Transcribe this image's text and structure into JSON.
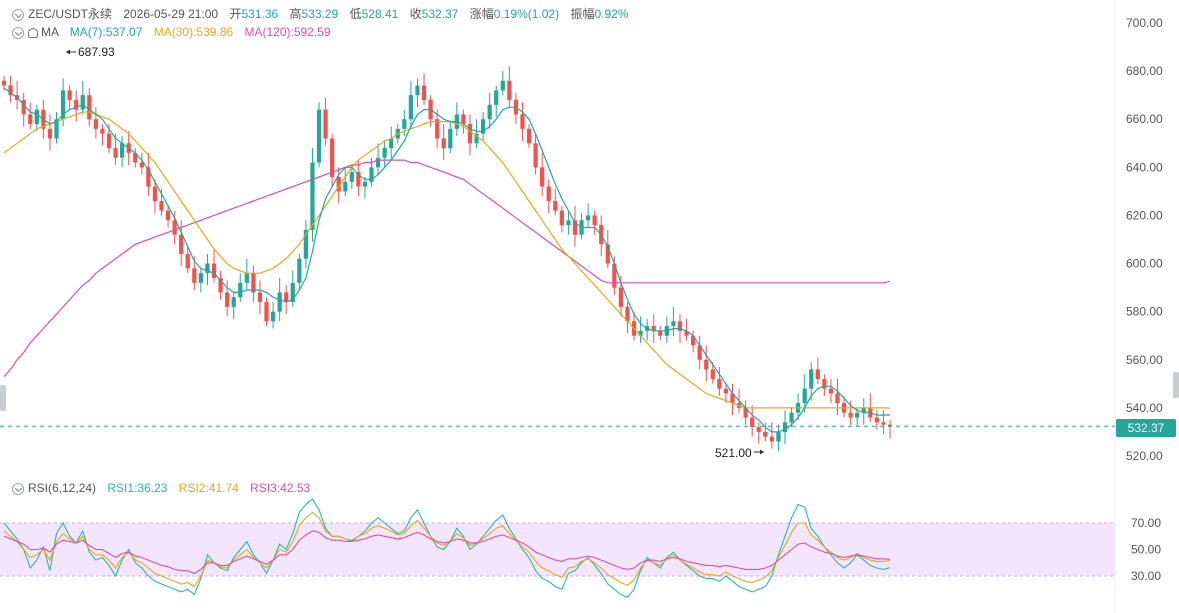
{
  "header": {
    "symbol": "ZEC/USDT永续",
    "datetime": "2026-05-29 21:00",
    "open_label": "开",
    "open_value": "531.36",
    "high_label": "高",
    "high_value": "533.29",
    "low_label": "低",
    "low_value": "528.41",
    "close_label": "收",
    "close_value": "532.37",
    "change_label": "涨幅",
    "change_value": "0.19%(1.02)",
    "amplitude_label": "振幅",
    "amplitude_value": "0.92%"
  },
  "ma_legend": {
    "label": "MA",
    "ma7": "MA(7):537.07",
    "ma30": "MA(30):539.86",
    "ma120": "MA(120):592.59"
  },
  "rsi_legend": {
    "label": "RSI(6,12,24)",
    "rsi1": "RSI1:36.23",
    "rsi2": "RSI2:41.74",
    "rsi3": "RSI3:42.53"
  },
  "price_axis": {
    "ticks": [
      "700.00",
      "680.00",
      "660.00",
      "640.00",
      "620.00",
      "600.00",
      "580.00",
      "560.00",
      "540.00",
      "520.00"
    ],
    "current_price": "532.37"
  },
  "rsi_axis": {
    "ticks": [
      "70.00",
      "50.00",
      "30.00"
    ]
  },
  "annotations": {
    "high": "687.93",
    "low": "521.00"
  },
  "colors": {
    "up": "#26a69a",
    "down": "#ef5350",
    "ma7": "#26a69a",
    "ma30": "#e6a817",
    "ma120": "#d64fb0",
    "rsi_band": "#f3e5fb"
  },
  "chart_data": [
    {
      "type": "candlestick",
      "title": "ZEC/USDT永续",
      "ylim": [
        515,
        705
      ],
      "yticks": [
        700,
        680,
        660,
        640,
        620,
        600,
        580,
        560,
        540,
        520
      ],
      "close": [
        674,
        670,
        668,
        662,
        658,
        664,
        656,
        652,
        660,
        672,
        668,
        664,
        670,
        660,
        656,
        654,
        648,
        644,
        650,
        646,
        642,
        640,
        632,
        626,
        622,
        618,
        612,
        604,
        598,
        592,
        596,
        600,
        594,
        588,
        582,
        586,
        592,
        596,
        588,
        584,
        576,
        580,
        588,
        584,
        592,
        602,
        614,
        642,
        664,
        652,
        636,
        630,
        634,
        638,
        632,
        634,
        640,
        644,
        648,
        652,
        656,
        660,
        670,
        674,
        668,
        660,
        652,
        648,
        656,
        662,
        658,
        650,
        654,
        660,
        666,
        672,
        676,
        668,
        662,
        656,
        650,
        640,
        632,
        626,
        622,
        616,
        618,
        612,
        618,
        620,
        616,
        608,
        600,
        590,
        582,
        576,
        570,
        572,
        574,
        572,
        570,
        574,
        576,
        572,
        570,
        566,
        560,
        556,
        552,
        548,
        546,
        542,
        540,
        536,
        532,
        530,
        528,
        526,
        530,
        534,
        538,
        542,
        548,
        556,
        552,
        548,
        546,
        542,
        538,
        536,
        538,
        540,
        536,
        534,
        533,
        532.37
      ],
      "ma7": [
        673,
        671,
        669,
        666,
        663,
        662,
        660,
        658,
        659,
        662,
        664,
        665,
        666,
        664,
        662,
        660,
        656,
        652,
        650,
        648,
        646,
        643,
        639,
        634,
        629,
        624,
        619,
        613,
        607,
        601,
        598,
        597,
        596,
        593,
        590,
        588,
        588,
        589,
        589,
        589,
        588,
        586,
        585,
        584,
        585,
        589,
        594,
        605,
        618,
        627,
        632,
        637,
        640,
        640,
        637,
        635,
        635,
        637,
        640,
        643,
        647,
        651,
        657,
        662,
        664,
        664,
        662,
        660,
        659,
        659,
        658,
        656,
        655,
        655,
        657,
        660,
        664,
        665,
        665,
        663,
        660,
        654,
        647,
        640,
        633,
        627,
        622,
        617,
        615,
        615,
        615,
        612,
        607,
        600,
        592,
        585,
        579,
        575,
        573,
        572,
        572,
        572,
        573,
        573,
        572,
        570,
        566,
        562,
        558,
        554,
        550,
        546,
        543,
        540,
        537,
        535,
        532,
        530,
        530,
        531,
        533,
        536,
        540,
        545,
        548,
        549,
        549,
        547,
        544,
        541,
        539,
        538,
        538,
        537,
        537,
        537.07
      ],
      "ma30": [
        646,
        648,
        650,
        652,
        654,
        656,
        657,
        658,
        659,
        660,
        661,
        662,
        663,
        663,
        662,
        661,
        660,
        658,
        656,
        654,
        651,
        648,
        645,
        642,
        638,
        634,
        630,
        626,
        622,
        618,
        614,
        610,
        606,
        603,
        600,
        598,
        597,
        596,
        596,
        596,
        597,
        598,
        600,
        602,
        605,
        608,
        612,
        616,
        620,
        624,
        628,
        632,
        636,
        640,
        643,
        645,
        647,
        649,
        651,
        652,
        654,
        655,
        656,
        657,
        658,
        659,
        659,
        659,
        659,
        658,
        657,
        655,
        653,
        651,
        648,
        645,
        642,
        638,
        634,
        630,
        626,
        622,
        618,
        614,
        610,
        606,
        603,
        600,
        597,
        594,
        591,
        588,
        585,
        582,
        579,
        576,
        573,
        570,
        567,
        564,
        561,
        558,
        556,
        554,
        552,
        550,
        548,
        546,
        545,
        544,
        543,
        542,
        541,
        540,
        540,
        540,
        540,
        540,
        540,
        540,
        540,
        540,
        540,
        540,
        540,
        540,
        540,
        540,
        540,
        540,
        540,
        540,
        540,
        540,
        540,
        539.86
      ],
      "ma120": [
        553,
        556,
        560,
        563,
        567,
        570,
        573,
        576,
        579,
        582,
        585,
        588,
        591,
        593,
        596,
        598,
        600,
        602,
        604,
        606,
        608,
        609,
        610,
        611,
        612,
        613,
        614,
        615,
        616,
        617,
        618,
        619,
        620,
        621,
        622,
        623,
        624,
        625,
        626,
        627,
        628,
        629,
        630,
        631,
        632,
        633,
        634,
        635,
        636,
        637,
        638,
        639,
        640,
        641,
        641,
        642,
        642,
        643,
        643,
        643,
        643,
        643,
        642,
        642,
        641,
        640,
        639,
        638,
        637,
        636,
        635,
        633,
        631,
        629,
        627,
        625,
        623,
        621,
        619,
        617,
        615,
        613,
        611,
        609,
        607,
        605,
        603,
        601,
        599,
        597,
        595,
        593,
        592,
        592,
        592,
        592,
        592,
        592,
        592,
        592,
        592,
        592,
        592,
        592,
        592,
        592,
        592,
        592,
        592,
        592,
        592,
        592,
        592,
        592,
        592,
        592,
        592,
        592,
        592,
        592,
        592,
        592,
        592,
        592,
        592,
        592,
        592,
        592,
        592,
        592,
        592,
        592,
        592,
        592,
        592,
        592.59
      ]
    },
    {
      "type": "line",
      "title": "RSI(6,12,24)",
      "ylim": [
        10,
        90
      ],
      "yticks": [
        70,
        50,
        30
      ],
      "band": [
        30,
        70
      ],
      "series": [
        {
          "name": "RSI1",
          "values": [
            70,
            64,
            58,
            50,
            36,
            42,
            52,
            34,
            62,
            70,
            60,
            55,
            64,
            48,
            42,
            44,
            38,
            30,
            42,
            50,
            40,
            36,
            30,
            26,
            24,
            22,
            20,
            18,
            20,
            16,
            28,
            46,
            40,
            36,
            34,
            44,
            50,
            56,
            46,
            40,
            32,
            42,
            54,
            50,
            62,
            78,
            84,
            88,
            80,
            66,
            60,
            60,
            58,
            56,
            60,
            64,
            70,
            74,
            70,
            66,
            62,
            64,
            74,
            80,
            70,
            60,
            52,
            50,
            56,
            66,
            60,
            50,
            54,
            60,
            66,
            72,
            76,
            66,
            58,
            50,
            44,
            34,
            28,
            26,
            22,
            20,
            32,
            34,
            40,
            44,
            38,
            32,
            24,
            20,
            16,
            14,
            20,
            34,
            44,
            40,
            36,
            44,
            48,
            42,
            38,
            34,
            30,
            28,
            28,
            26,
            30,
            26,
            22,
            20,
            18,
            20,
            22,
            30,
            46,
            60,
            74,
            84,
            82,
            66,
            60,
            52,
            46,
            40,
            36,
            40,
            46,
            42,
            38,
            36,
            35,
            36.23
          ]
        },
        {
          "name": "RSI2",
          "values": [
            64,
            60,
            56,
            50,
            44,
            46,
            50,
            42,
            56,
            62,
            58,
            55,
            60,
            50,
            46,
            46,
            42,
            36,
            44,
            48,
            42,
            40,
            36,
            32,
            30,
            28,
            26,
            24,
            25,
            22,
            30,
            42,
            40,
            37,
            36,
            42,
            46,
            50,
            44,
            40,
            36,
            42,
            50,
            48,
            56,
            68,
            74,
            78,
            74,
            64,
            60,
            60,
            58,
            57,
            60,
            62,
            66,
            68,
            66,
            64,
            61,
            62,
            68,
            72,
            66,
            60,
            55,
            53,
            56,
            62,
            59,
            53,
            55,
            58,
            62,
            66,
            68,
            62,
            57,
            52,
            48,
            41,
            36,
            34,
            31,
            29,
            36,
            37,
            41,
            43,
            40,
            36,
            31,
            28,
            25,
            23,
            27,
            36,
            42,
            40,
            38,
            43,
            46,
            42,
            39,
            36,
            33,
            31,
            31,
            30,
            33,
            30,
            28,
            26,
            25,
            27,
            29,
            34,
            44,
            53,
            63,
            70,
            70,
            61,
            57,
            52,
            48,
            44,
            42,
            44,
            47,
            44,
            42,
            41,
            41,
            41.74
          ]
        },
        {
          "name": "RSI3",
          "values": [
            60,
            58,
            56,
            54,
            50,
            50,
            51,
            48,
            54,
            57,
            56,
            55,
            57,
            53,
            50,
            50,
            47,
            44,
            47,
            48,
            45,
            44,
            42,
            40,
            38,
            37,
            35,
            34,
            34,
            32,
            35,
            40,
            40,
            38,
            38,
            41,
            43,
            45,
            43,
            41,
            39,
            42,
            46,
            46,
            50,
            57,
            61,
            64,
            63,
            59,
            57,
            57,
            56,
            56,
            57,
            58,
            60,
            61,
            60,
            59,
            58,
            59,
            61,
            63,
            61,
            58,
            56,
            55,
            56,
            58,
            57,
            55,
            55,
            56,
            58,
            60,
            61,
            59,
            57,
            55,
            52,
            48,
            46,
            44,
            42,
            41,
            43,
            43,
            44,
            45,
            44,
            42,
            40,
            38,
            36,
            35,
            36,
            40,
            42,
            42,
            41,
            43,
            44,
            43,
            41,
            40,
            39,
            38,
            38,
            37,
            38,
            37,
            36,
            35,
            35,
            35,
            36,
            38,
            42,
            46,
            50,
            54,
            55,
            52,
            50,
            48,
            47,
            45,
            44,
            45,
            46,
            45,
            44,
            43,
            43,
            42.53
          ]
        }
      ]
    }
  ]
}
